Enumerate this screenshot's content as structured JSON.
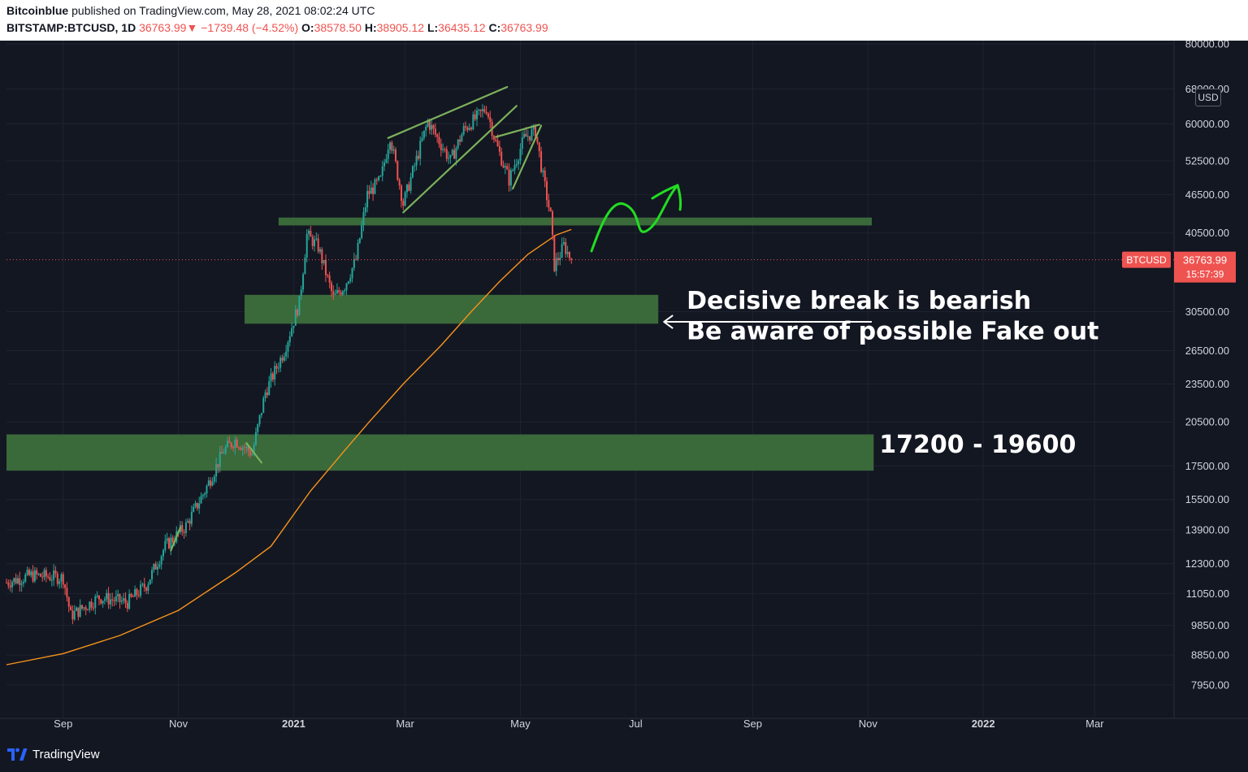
{
  "header": {
    "author": "Bitcoinblue",
    "published_text": "published on TradingView.com, May 28, 2021 08:02:24 UTC",
    "symbol": "BITSTAMP:BTCUSD, 1D",
    "last": "36763.99",
    "down_arrow": "▼",
    "change": "−1739.48 (−4.52%)",
    "o_label": "O:",
    "o_value": "38578.50",
    "h_label": "H:",
    "h_value": "38905.12",
    "l_label": "L:",
    "l_value": "36435.12",
    "c_label": "C:",
    "c_value": "36763.99"
  },
  "chart_data": {
    "type": "candlestick",
    "symbol": "BTCUSD",
    "timeframe": "1D",
    "currency": "USD",
    "y_scale": "log",
    "ylim": [
      7300,
      80000
    ],
    "xlim": [
      "2020-08-02",
      "2022-04-12"
    ],
    "x_ticks": [
      {
        "date": "2020-09-01",
        "label": "Sep",
        "bold": false
      },
      {
        "date": "2020-11-01",
        "label": "Nov",
        "bold": false
      },
      {
        "date": "2021-01-01",
        "label": "2021",
        "bold": true
      },
      {
        "date": "2021-03-01",
        "label": "Mar",
        "bold": false
      },
      {
        "date": "2021-05-01",
        "label": "May",
        "bold": false
      },
      {
        "date": "2021-07-01",
        "label": "Jul",
        "bold": false
      },
      {
        "date": "2021-09-01",
        "label": "Sep",
        "bold": false
      },
      {
        "date": "2021-11-01",
        "label": "Nov",
        "bold": false
      },
      {
        "date": "2022-01-01",
        "label": "2022",
        "bold": true
      },
      {
        "date": "2022-03-01",
        "label": "Mar",
        "bold": false
      }
    ],
    "y_ticks": [
      "80000.00",
      "68000.00",
      "60000.00",
      "52500.00",
      "46500.00",
      "40500.00",
      "30500.00",
      "26500.00",
      "23500.00",
      "20500.00",
      "17500.00",
      "15500.00",
      "13900.00",
      "12300.00",
      "11050.00",
      "9850.00",
      "8850.00",
      "7950.00"
    ],
    "price_path": [
      [
        "2020-08-02",
        11500
      ],
      [
        "2020-08-15",
        11800
      ],
      [
        "2020-09-01",
        11700
      ],
      [
        "2020-09-05",
        10200
      ],
      [
        "2020-09-20",
        10900
      ],
      [
        "2020-10-05",
        10700
      ],
      [
        "2020-10-15",
        11400
      ],
      [
        "2020-10-25",
        13100
      ],
      [
        "2020-11-05",
        14100
      ],
      [
        "2020-11-15",
        16000
      ],
      [
        "2020-11-25",
        18500
      ],
      [
        "2020-12-01",
        19200
      ],
      [
        "2020-12-10",
        18300
      ],
      [
        "2020-12-17",
        22800
      ],
      [
        "2020-12-27",
        26500
      ],
      [
        "2021-01-04",
        31500
      ],
      [
        "2021-01-08",
        40200
      ],
      [
        "2021-01-14",
        38500
      ],
      [
        "2021-01-22",
        32000
      ],
      [
        "2021-01-28",
        33500
      ],
      [
        "2021-02-03",
        36800
      ],
      [
        "2021-02-09",
        46500
      ],
      [
        "2021-02-16",
        49000
      ],
      [
        "2021-02-21",
        57500
      ],
      [
        "2021-02-28",
        45000
      ],
      [
        "2021-03-13",
        60500
      ],
      [
        "2021-03-25",
        52500
      ],
      [
        "2021-04-01",
        58700
      ],
      [
        "2021-04-13",
        63500
      ],
      [
        "2021-04-18",
        56000
      ],
      [
        "2021-04-25",
        49000
      ],
      [
        "2021-05-03",
        57000
      ],
      [
        "2021-05-09",
        58500
      ],
      [
        "2021-05-13",
        49500
      ],
      [
        "2021-05-17",
        43000
      ],
      [
        "2021-05-19",
        36000
      ],
      [
        "2021-05-22",
        37500
      ],
      [
        "2021-05-24",
        38700
      ],
      [
        "2021-05-28",
        36763.99
      ]
    ],
    "candle_seed": 7,
    "last_price": 36763.99,
    "last_price_label": "36763.99",
    "countdown": "15:57:39",
    "series": [
      {
        "name": "BTCUSD",
        "color": "#ef5350",
        "type": "candles"
      },
      {
        "name": "",
        "color": "#f7931a",
        "type": "moving average",
        "values": [
          [
            "2020-08-02",
            8550
          ],
          [
            "2020-09-01",
            8900
          ],
          [
            "2020-10-01",
            9500
          ],
          [
            "2020-11-01",
            10400
          ],
          [
            "2020-12-01",
            11900
          ],
          [
            "2020-12-20",
            13100
          ],
          [
            "2021-01-10",
            16000
          ],
          [
            "2021-01-28",
            18500
          ],
          [
            "2021-02-10",
            20500
          ],
          [
            "2021-02-28",
            23500
          ],
          [
            "2021-03-20",
            27000
          ],
          [
            "2021-04-05",
            30500
          ],
          [
            "2021-04-20",
            34000
          ],
          [
            "2021-05-05",
            37500
          ],
          [
            "2021-05-20",
            40200
          ],
          [
            "2021-05-28",
            41000
          ]
        ]
      }
    ],
    "zones": [
      {
        "from_date": "2020-12-24",
        "to_date": "2021-11-03",
        "low": 41600,
        "high": 42800,
        "color": "#3c6e3c"
      },
      {
        "from_date": "2020-12-06",
        "to_date": "2021-07-13",
        "low": 29200,
        "high": 32400,
        "color": "#3c6e3c",
        "label": ""
      },
      {
        "from_date": "2020-08-02",
        "to_date": "2021-11-04",
        "low": 17200,
        "high": 19600,
        "color": "#3c6e3c",
        "label": "17200 - 19600"
      }
    ],
    "trendlines": [
      {
        "color": "#7cb25a",
        "points": [
          [
            "2021-02-20",
            57000
          ],
          [
            "2021-04-24",
            68500
          ]
        ]
      },
      {
        "color": "#7cb25a",
        "points": [
          [
            "2021-02-28",
            43600
          ],
          [
            "2021-04-29",
            64000
          ]
        ]
      },
      {
        "color": "#7cb25a",
        "points": [
          [
            "2021-04-18",
            57200
          ],
          [
            "2021-05-11",
            59800
          ]
        ]
      },
      {
        "color": "#7cb25a",
        "points": [
          [
            "2021-04-27",
            47500
          ],
          [
            "2021-05-12",
            59600
          ]
        ]
      },
      {
        "color": "#7cb25a",
        "points": [
          [
            "2020-12-07",
            19000
          ],
          [
            "2020-12-15",
            17700
          ]
        ]
      },
      {
        "color": "#7cb25a",
        "points": [
          [
            "2020-10-28",
            12900
          ],
          [
            "2020-11-02",
            14000
          ]
        ]
      }
    ],
    "annotations": [
      {
        "text": "Decisive break is bearish",
        "date": "2021-07-28",
        "price": 30800,
        "size": 30
      },
      {
        "text": "Be aware of possible Fake out",
        "date": "2021-07-28",
        "price": 27600,
        "size": 30
      },
      {
        "text": "17200 - 19600",
        "date": "2021-11-07",
        "price": 18350,
        "size": 30
      }
    ],
    "arrows": [
      {
        "color": "#ffffff",
        "from": [
          "2021-11-03",
          29400
        ],
        "to": [
          "2021-07-16",
          29400
        ]
      }
    ],
    "sketch_arrow": {
      "color": "#22dd22"
    }
  },
  "axis": {
    "currency_button": "USD",
    "price_tag_symbol": "BTCUSD"
  },
  "footer": {
    "brand": "TradingView"
  },
  "colors": {
    "background": "#131722",
    "grid": "#1f2330",
    "up": "#26a69a",
    "down": "#ef5350",
    "zone": "#3c6e3c",
    "ma": "#f7931a"
  }
}
